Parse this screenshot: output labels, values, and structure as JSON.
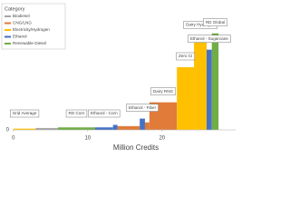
{
  "chart_data": {
    "type": "step-bar",
    "x_label": "Million Credits",
    "legend_title": "Category",
    "xlim": [
      -1.8,
      29.9
    ],
    "xticks": [
      0,
      10,
      20
    ],
    "ylim": [
      -5,
      100
    ],
    "yticks": [
      0
    ],
    "grid": true,
    "series": [
      {
        "name": "Biodiesel",
        "color": "#a5a5a5",
        "x0": [
          3
        ],
        "x1": [
          6
        ],
        "values": [
          1.5
        ],
        "labels": [
          null
        ]
      },
      {
        "name": "CNG/LNG",
        "color": "#e07b39",
        "x0": [
          14,
          17.7,
          18.3
        ],
        "x1": [
          17,
          18.3,
          22
        ],
        "values": [
          3,
          6,
          22
        ],
        "labels": [
          null,
          null,
          "Dairy RNG"
        ]
      },
      {
        "name": "Electricity/Hydrogen",
        "color": "#ffc000",
        "x0": [
          0,
          22,
          24.3
        ],
        "x1": [
          3,
          24.3,
          26
        ],
        "values": [
          1,
          50,
          75
        ],
        "labels": [
          "Grid Average",
          "Zero CI",
          "Dairy Hydrogen"
        ]
      },
      {
        "name": "Ethanol",
        "color": "#4472c4",
        "x0": [
          11,
          13.4,
          17,
          26
        ],
        "x1": [
          13.4,
          14,
          17.7,
          26.7
        ],
        "values": [
          2,
          4,
          9,
          64
        ],
        "labels": [
          "Ethanol - Corn",
          null,
          "Ethanol - Fiber",
          "Ethanol - Sugarcane"
        ]
      },
      {
        "name": "Renewable Diesel",
        "color": "#70ad47",
        "x0": [
          6,
          26.7
        ],
        "x1": [
          11,
          27.6
        ],
        "values": [
          2,
          77
        ],
        "labels": [
          "RD Corn",
          "RD Global"
        ]
      }
    ]
  }
}
